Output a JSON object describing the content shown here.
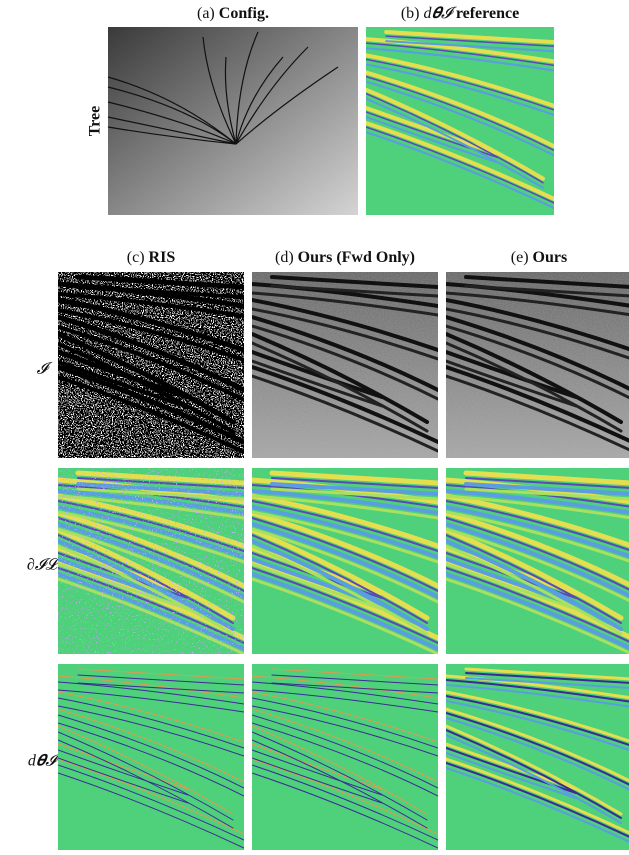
{
  "top": {
    "config": {
      "prefix": "(a)",
      "bold": "Config."
    },
    "reference": {
      "prefix": "(b)",
      "math": "d𝜽𝓘",
      "bold": "reference"
    },
    "row_label": "Tree"
  },
  "columns": [
    {
      "prefix": "(c)",
      "bold": "RIS"
    },
    {
      "prefix": "(d)",
      "bold": "Ours (Fwd Only)"
    },
    {
      "prefix": "(e)",
      "bold": "Ours"
    }
  ],
  "rows": [
    "𝓘",
    "∂𝓘𝓛",
    "d𝜽𝓘"
  ]
}
